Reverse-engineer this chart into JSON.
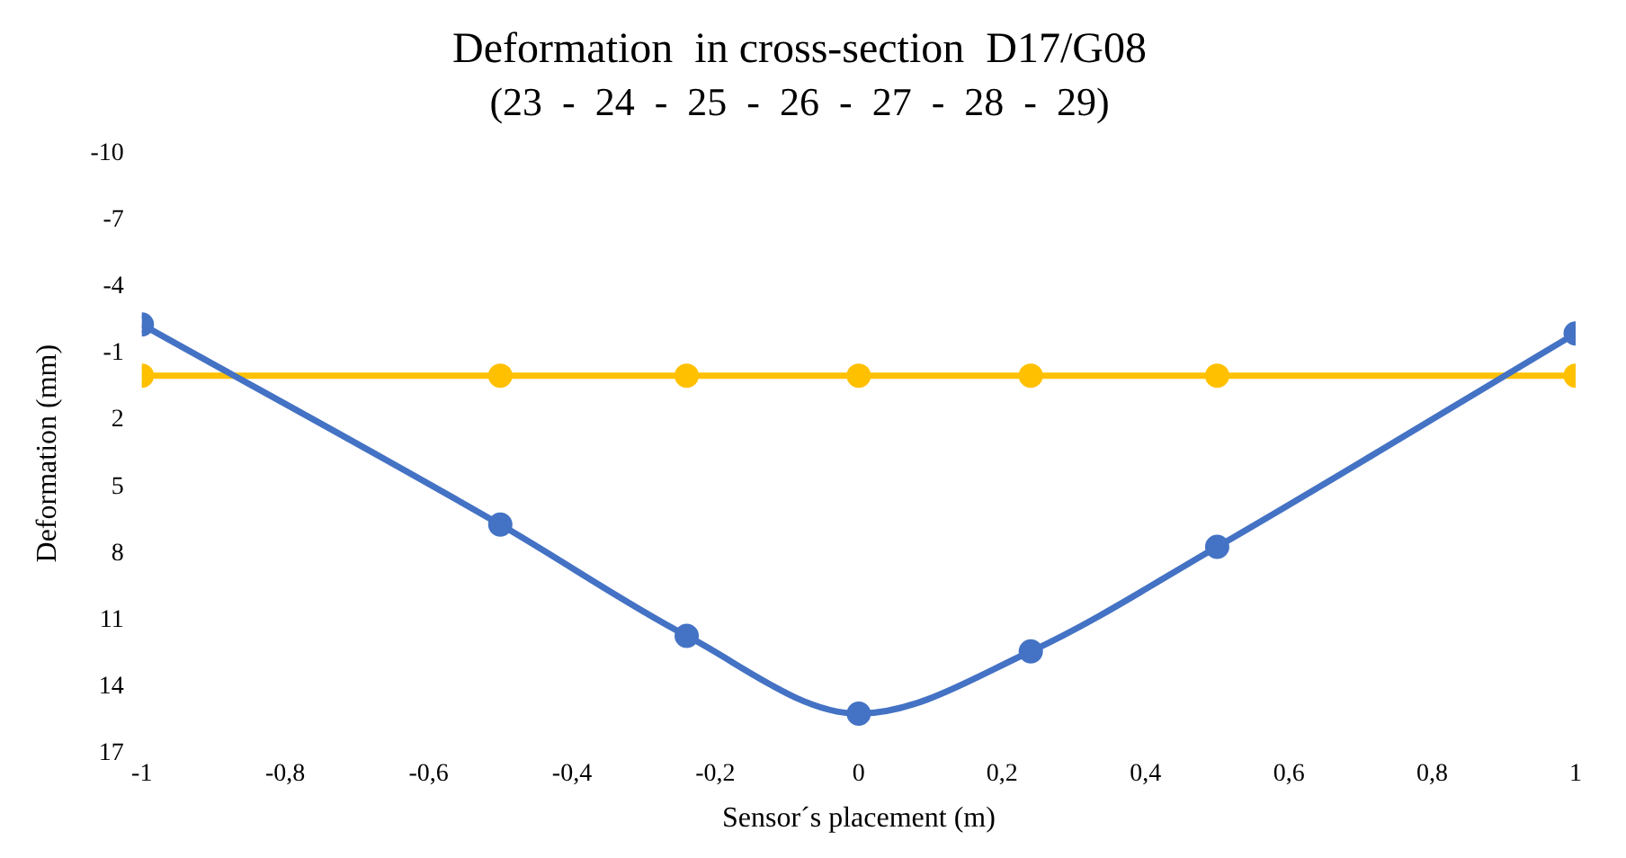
{
  "chart_data": {
    "type": "line",
    "title": "Deformation  in cross-section  D17/G08",
    "subtitle": "(23  -  24  -  25  -  26  -  27  -  28  -  29)",
    "xlabel": "Sensor´s placement (m)",
    "ylabel": "Deformation (mm)",
    "x": [
      -1,
      -0.5,
      -0.24,
      0,
      0.24,
      0.5,
      1
    ],
    "series": [
      {
        "color": "#4472c4",
        "values": [
          -2.3,
          6.7,
          11.7,
          15.2,
          12.4,
          7.7,
          -1.9
        ]
      },
      {
        "color": "#ffc000",
        "values": [
          0,
          0,
          0,
          0,
          0,
          0,
          0
        ]
      }
    ],
    "xlim": [
      -1,
      1
    ],
    "xticks": [
      -1,
      {
        "value": -0.8,
        "label": "-0,8"
      },
      {
        "value": -0.6,
        "label": "-0,6"
      },
      {
        "value": -0.4,
        "label": "-0,4"
      },
      {
        "value": -0.2,
        "label": "-0,2"
      },
      0,
      {
        "value": 0.2,
        "label": "0,2"
      },
      {
        "value": 0.4,
        "label": "0,4"
      },
      {
        "value": 0.6,
        "label": "0,6"
      },
      {
        "value": 0.8,
        "label": "0,8"
      },
      1
    ],
    "ylim": [
      17,
      -10
    ],
    "yticks": [
      -10,
      -7,
      -4,
      -1,
      2,
      5,
      8,
      11,
      14,
      17
    ],
    "marker": "circle",
    "line_style": "solid",
    "grid": false,
    "legend": false
  }
}
